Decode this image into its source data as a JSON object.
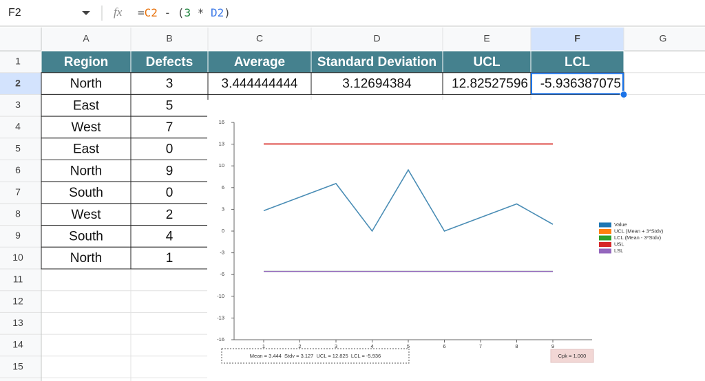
{
  "formula_bar": {
    "name_box": "F2",
    "fx": "fx",
    "formula": [
      {
        "text": "=",
        "color": "#444444"
      },
      {
        "text": "C2",
        "color": "#e8710a"
      },
      {
        "text": " - (",
        "color": "#444444"
      },
      {
        "text": "3",
        "color": "#188038"
      },
      {
        "text": " * ",
        "color": "#444444"
      },
      {
        "text": "D2",
        "color": "#3b78e7"
      },
      {
        "text": ")",
        "color": "#444444"
      }
    ]
  },
  "sheet": {
    "columns": [
      "A",
      "B",
      "C",
      "D",
      "E",
      "F",
      "G"
    ],
    "rows": [
      "1",
      "2",
      "3",
      "4",
      "5",
      "6",
      "7",
      "8",
      "9",
      "10",
      "11",
      "12",
      "13",
      "14",
      "15"
    ],
    "selected": "F2",
    "cells": [
      [
        "Region",
        "Defects",
        "Average",
        "Standard Deviation",
        "UCL",
        "LCL"
      ],
      [
        "North",
        "3",
        "3.444444444",
        "3.12694384",
        "12.82527596",
        "-5.936387075"
      ],
      [
        "East",
        "5"
      ],
      [
        "West",
        "7"
      ],
      [
        "East",
        "0"
      ],
      [
        "North",
        "9"
      ],
      [
        "South",
        "0"
      ],
      [
        "West",
        "2"
      ],
      [
        "South",
        "4"
      ],
      [
        "North",
        "1"
      ]
    ]
  },
  "chart_data": {
    "type": "line",
    "categories": [
      "1",
      "2",
      "3",
      "4",
      "5",
      "6",
      "7",
      "8",
      "9"
    ],
    "series": [
      {
        "name": "Value",
        "color": "#4a8db5",
        "legend_color": "#1f77b4",
        "values": [
          3,
          5,
          7,
          0,
          9,
          0,
          2,
          4,
          1
        ]
      },
      {
        "name": "UCL (Mean + 3*Stdv)",
        "color": "#ff7f0e",
        "values": [
          12.825,
          12.825,
          12.825,
          12.825,
          12.825,
          12.825,
          12.825,
          12.825,
          12.825
        ]
      },
      {
        "name": "LCL (Mean - 3*Stdv)",
        "color": "#2ca02c",
        "values": [
          -5.936,
          -5.936,
          -5.936,
          -5.936,
          -5.936,
          -5.936,
          -5.936,
          -5.936,
          -5.936
        ]
      },
      {
        "name": "USL",
        "color": "#d62728",
        "values": [
          12.825,
          12.825,
          12.825,
          12.825,
          12.825,
          12.825,
          12.825,
          12.825,
          12.825
        ]
      },
      {
        "name": "LSL",
        "color": "#9467bd",
        "values": [
          -5.936,
          -5.936,
          -5.936,
          -5.936,
          -5.936,
          -5.936,
          -5.936,
          -5.936,
          -5.936
        ]
      }
    ],
    "ylim": [
      -16,
      16
    ],
    "yticks": [
      16,
      {
        "value": 12.8,
        "label": "13"
      },
      {
        "value": 9.6,
        "label": "10"
      },
      {
        "value": 6.4,
        "label": "6"
      },
      {
        "value": 3.2,
        "label": "3"
      },
      0,
      {
        "value": -3.2,
        "label": "-3"
      },
      {
        "value": -6.4,
        "label": "-6"
      },
      {
        "value": -9.6,
        "label": "-10"
      },
      {
        "value": -12.8,
        "label": "-13"
      },
      -16
    ],
    "legend": "right",
    "annotations": [
      "Mean = 3.444  Stdv = 3.127  UCL = 12.825  LCL = -5.936",
      "Cpk = 1.000"
    ]
  }
}
